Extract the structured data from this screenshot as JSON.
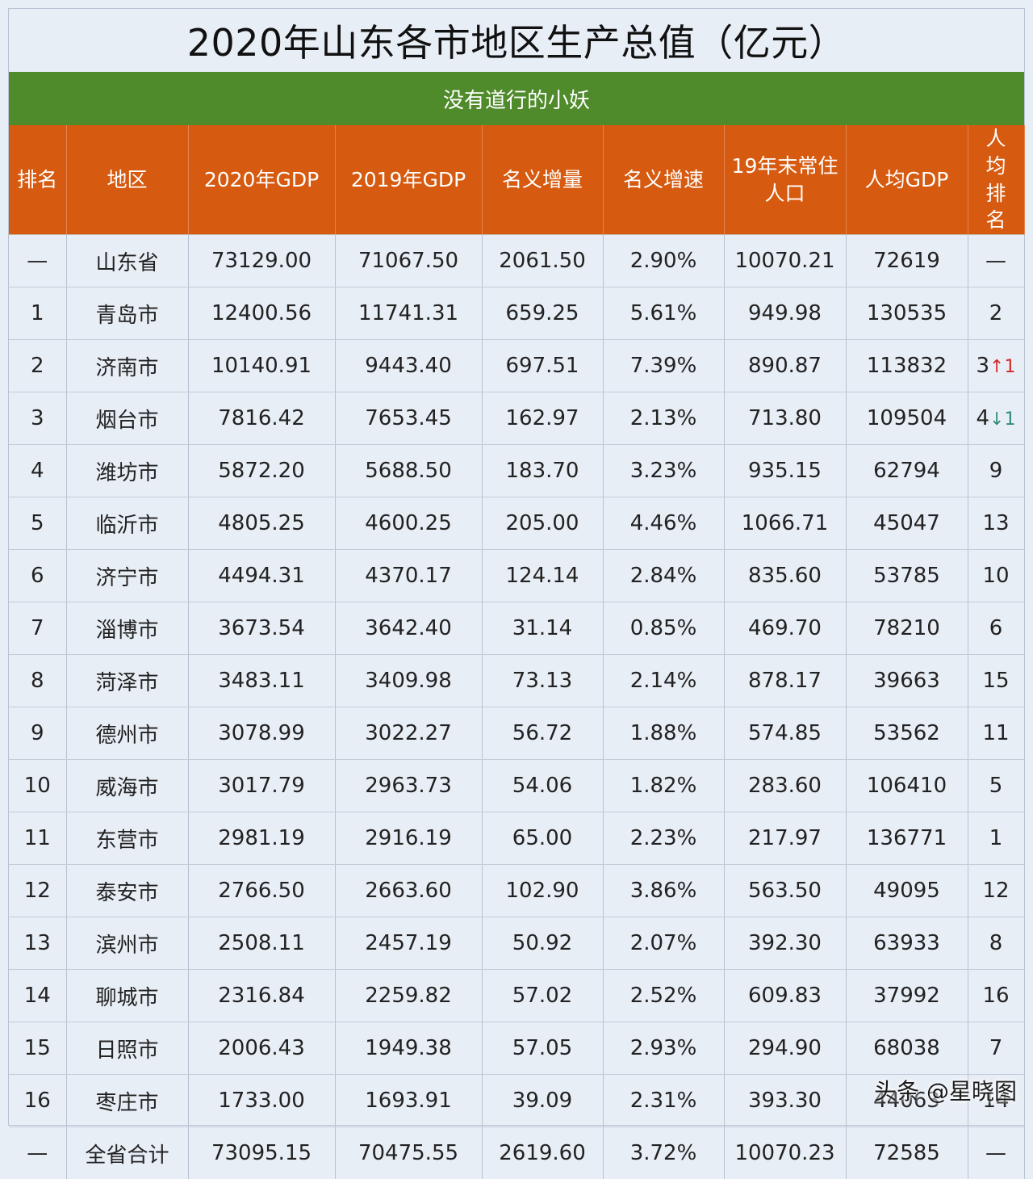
{
  "title": "2020年山东各市地区生产总值（亿元）",
  "subtitle": "没有道行的小妖",
  "colors": {
    "header_bg": "#d65a0f",
    "subtitle_bg": "#4f8a2b",
    "page_bg": "#e8eef6",
    "value_brown": "#8a4b28",
    "rank_up": "#d22a2a",
    "rank_down": "#2f8c77"
  },
  "headers": [
    "排名",
    "地区",
    "2020年GDP",
    "2019年GDP",
    "名义增量",
    "名义增速",
    "19年末常住人口",
    "人均GDP",
    "人均排名"
  ],
  "rows": [
    {
      "rank": "—",
      "region": "山东省",
      "gdp2020": "73129.00",
      "gdp2019": "71067.50",
      "increment": "2061.50",
      "growth": "2.90%",
      "population": "10070.21",
      "per_capita": "72619",
      "pc_rank": "—",
      "pc_arrow": "",
      "pc_delta": ""
    },
    {
      "rank": "1",
      "region": "青岛市",
      "gdp2020": "12400.56",
      "gdp2019": "11741.31",
      "increment": "659.25",
      "growth": "5.61%",
      "population": "949.98",
      "per_capita": "130535",
      "pc_rank": "2",
      "pc_arrow": "",
      "pc_delta": ""
    },
    {
      "rank": "2",
      "region": "济南市",
      "gdp2020": "10140.91",
      "gdp2019": "9443.40",
      "increment": "697.51",
      "growth": "7.39%",
      "population": "890.87",
      "per_capita": "113832",
      "pc_rank": "3",
      "pc_arrow": "↑",
      "pc_delta": "1",
      "pc_dir": "up"
    },
    {
      "rank": "3",
      "region": "烟台市",
      "gdp2020": "7816.42",
      "gdp2019": "7653.45",
      "increment": "162.97",
      "growth": "2.13%",
      "population": "713.80",
      "per_capita": "109504",
      "pc_rank": "4",
      "pc_arrow": "↓",
      "pc_delta": "1",
      "pc_dir": "down"
    },
    {
      "rank": "4",
      "region": "潍坊市",
      "gdp2020": "5872.20",
      "gdp2019": "5688.50",
      "increment": "183.70",
      "growth": "3.23%",
      "population": "935.15",
      "per_capita": "62794",
      "pc_rank": "9",
      "pc_arrow": "",
      "pc_delta": ""
    },
    {
      "rank": "5",
      "region": "临沂市",
      "gdp2020": "4805.25",
      "gdp2019": "4600.25",
      "increment": "205.00",
      "growth": "4.46%",
      "population": "1066.71",
      "per_capita": "45047",
      "pc_rank": "13",
      "pc_arrow": "",
      "pc_delta": ""
    },
    {
      "rank": "6",
      "region": "济宁市",
      "gdp2020": "4494.31",
      "gdp2019": "4370.17",
      "increment": "124.14",
      "growth": "2.84%",
      "population": "835.60",
      "per_capita": "53785",
      "pc_rank": "10",
      "pc_arrow": "",
      "pc_delta": ""
    },
    {
      "rank": "7",
      "region": "淄博市",
      "gdp2020": "3673.54",
      "gdp2019": "3642.40",
      "increment": "31.14",
      "growth": "0.85%",
      "population": "469.70",
      "per_capita": "78210",
      "pc_rank": "6",
      "pc_arrow": "",
      "pc_delta": ""
    },
    {
      "rank": "8",
      "region": "菏泽市",
      "gdp2020": "3483.11",
      "gdp2019": "3409.98",
      "increment": "73.13",
      "growth": "2.14%",
      "population": "878.17",
      "per_capita": "39663",
      "pc_rank": "15",
      "pc_arrow": "",
      "pc_delta": ""
    },
    {
      "rank": "9",
      "region": "德州市",
      "gdp2020": "3078.99",
      "gdp2019": "3022.27",
      "increment": "56.72",
      "growth": "1.88%",
      "population": "574.85",
      "per_capita": "53562",
      "pc_rank": "11",
      "pc_arrow": "",
      "pc_delta": ""
    },
    {
      "rank": "10",
      "region": "威海市",
      "gdp2020": "3017.79",
      "gdp2019": "2963.73",
      "increment": "54.06",
      "growth": "1.82%",
      "population": "283.60",
      "per_capita": "106410",
      "pc_rank": "5",
      "pc_arrow": "",
      "pc_delta": ""
    },
    {
      "rank": "11",
      "region": "东营市",
      "gdp2020": "2981.19",
      "gdp2019": "2916.19",
      "increment": "65.00",
      "growth": "2.23%",
      "population": "217.97",
      "per_capita": "136771",
      "pc_rank": "1",
      "pc_arrow": "",
      "pc_delta": ""
    },
    {
      "rank": "12",
      "region": "泰安市",
      "gdp2020": "2766.50",
      "gdp2019": "2663.60",
      "increment": "102.90",
      "growth": "3.86%",
      "population": "563.50",
      "per_capita": "49095",
      "pc_rank": "12",
      "pc_arrow": "",
      "pc_delta": ""
    },
    {
      "rank": "13",
      "region": "滨州市",
      "gdp2020": "2508.11",
      "gdp2019": "2457.19",
      "increment": "50.92",
      "growth": "2.07%",
      "population": "392.30",
      "per_capita": "63933",
      "pc_rank": "8",
      "pc_arrow": "",
      "pc_delta": ""
    },
    {
      "rank": "14",
      "region": "聊城市",
      "gdp2020": "2316.84",
      "gdp2019": "2259.82",
      "increment": "57.02",
      "growth": "2.52%",
      "population": "609.83",
      "per_capita": "37992",
      "pc_rank": "16",
      "pc_arrow": "",
      "pc_delta": ""
    },
    {
      "rank": "15",
      "region": "日照市",
      "gdp2020": "2006.43",
      "gdp2019": "1949.38",
      "increment": "57.05",
      "growth": "2.93%",
      "population": "294.90",
      "per_capita": "68038",
      "pc_rank": "7",
      "pc_arrow": "",
      "pc_delta": ""
    },
    {
      "rank": "16",
      "region": "枣庄市",
      "gdp2020": "1733.00",
      "gdp2019": "1693.91",
      "increment": "39.09",
      "growth": "2.31%",
      "population": "393.30",
      "per_capita": "44063",
      "pc_rank": "14",
      "pc_arrow": "",
      "pc_delta": ""
    },
    {
      "rank": "—",
      "region": "全省合计",
      "gdp2020": "73095.15",
      "gdp2019": "70475.55",
      "increment": "2619.60",
      "growth": "3.72%",
      "population": "10070.23",
      "per_capita": "72585",
      "pc_rank": "—",
      "pc_arrow": "",
      "pc_delta": ""
    }
  ],
  "watermark": "头条 @星晓图"
}
